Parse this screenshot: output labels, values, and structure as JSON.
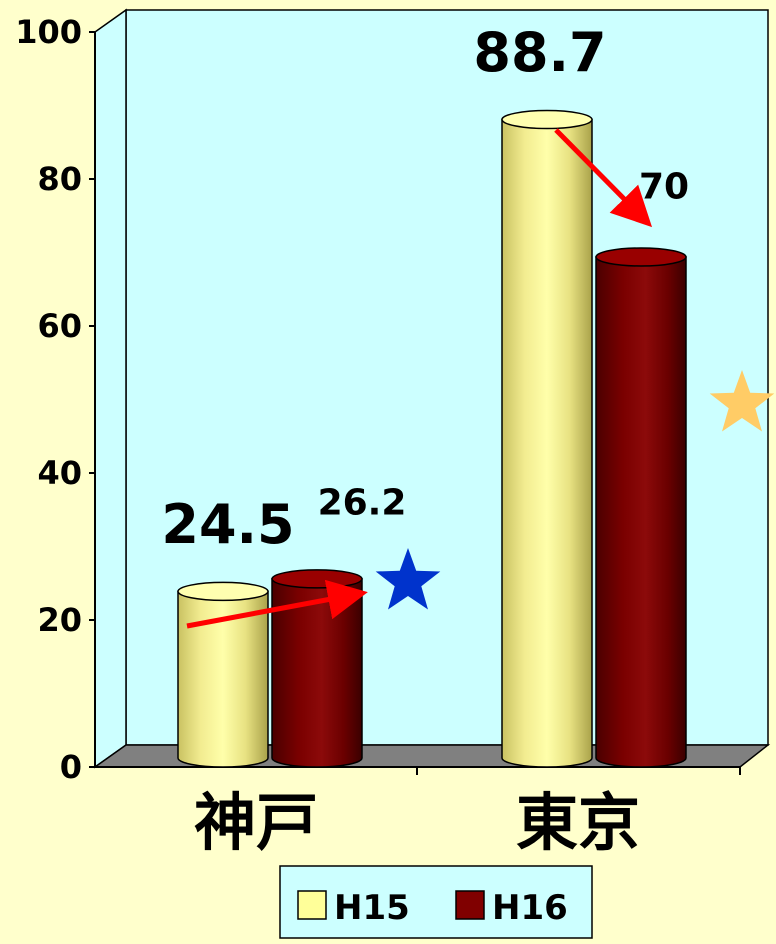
{
  "chart_data": {
    "type": "bar",
    "categories": [
      "神戸",
      "東京"
    ],
    "series": [
      {
        "name": "H15",
        "values": [
          24.5,
          88.7
        ]
      },
      {
        "name": "H16",
        "values": [
          26.2,
          70
        ]
      }
    ],
    "data_labels": [
      [
        "24.5",
        "88.7"
      ],
      [
        "26.2",
        "70"
      ]
    ],
    "yticks": [
      "0",
      "20",
      "40",
      "60",
      "80",
      "100"
    ],
    "ylim": [
      0,
      100
    ],
    "title": "",
    "xlabel": "",
    "ylabel": "",
    "legend_position": "bottom",
    "grid": false,
    "colors": {
      "page_background": "#FFFFCC",
      "plot_wall": "#CCFFFF",
      "floor": "#808080",
      "series_H15": "#FFFF99",
      "series_H16": "#800000",
      "arrow": "#FF0000",
      "star_kobe": "#0033CC",
      "star_tokyo": "#FFCC66"
    },
    "annotations": [
      {
        "type": "arrow",
        "from": "H15",
        "to": "H16",
        "category": "神戸",
        "direction": "up"
      },
      {
        "type": "arrow",
        "from": "H15",
        "to": "H16",
        "category": "東京",
        "direction": "down"
      },
      {
        "type": "star-icon",
        "category": "神戸",
        "color": "#0033CC"
      },
      {
        "type": "star-icon",
        "category": "東京",
        "color": "#FFCC66"
      }
    ]
  }
}
